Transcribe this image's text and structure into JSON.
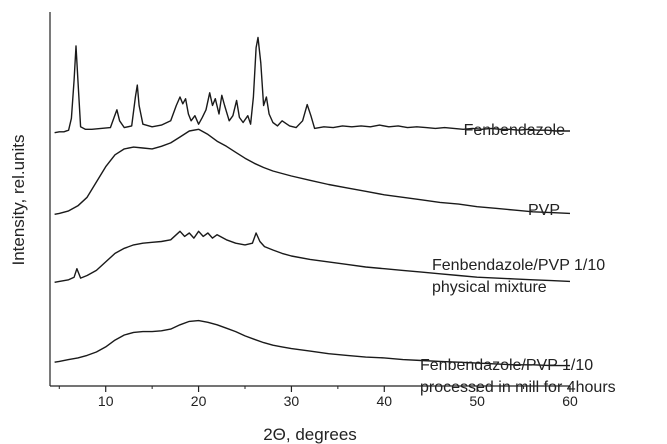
{
  "chart_data": {
    "type": "line",
    "xlabel": "2Θ, degrees",
    "ylabel": "Intensity, rel.units",
    "xlim": [
      4,
      60
    ],
    "ylim": [
      0,
      440
    ],
    "y_ticks_shown": false,
    "x_ticks": [
      10,
      20,
      30,
      40,
      50,
      60
    ],
    "grid": false,
    "line_color": "#1a1a1a",
    "series": [
      {
        "name": "Fenbendazole",
        "labels": [
          "Fenbendazole"
        ],
        "x": [
          4.5,
          5,
          5.5,
          6,
          6.3,
          6.6,
          6.8,
          7.0,
          7.3,
          7.8,
          8.5,
          9.5,
          10.5,
          10.9,
          11.2,
          11.5,
          12,
          12.8,
          13.2,
          13.4,
          13.6,
          14,
          15,
          16,
          17,
          17.6,
          18,
          18.3,
          18.6,
          18.9,
          19.2,
          19.6,
          20,
          20.4,
          20.8,
          21.2,
          21.5,
          21.8,
          22.2,
          22.5,
          22.8,
          23.3,
          23.7,
          24.1,
          24.4,
          24.8,
          25.3,
          25.6,
          25.9,
          26.2,
          26.4,
          26.7,
          27.0,
          27.3,
          27.6,
          28,
          28.5,
          29,
          29.4,
          29.8,
          30.5,
          31.2,
          31.7,
          32.1,
          32.5,
          33.5,
          34.5,
          35.5,
          36.5,
          37.5,
          38.5,
          39.5,
          40.5,
          41.5,
          42.5,
          43.5,
          44.5,
          45.5,
          46.5,
          47.5,
          48.5,
          49.5,
          50.5,
          51.5,
          52.5,
          53.5,
          54.5,
          55.5,
          56.5,
          57.5,
          58.5,
          59.5,
          60
        ],
        "y": [
          298,
          299,
          299,
          301,
          315,
          360,
          400,
          360,
          305,
          302,
          302,
          303,
          304,
          316,
          325,
          312,
          304,
          306,
          340,
          354,
          330,
          308,
          305,
          307,
          312,
          330,
          340,
          332,
          338,
          320,
          312,
          318,
          308,
          316,
          325,
          345,
          330,
          338,
          320,
          342,
          330,
          312,
          318,
          336,
          316,
          310,
          318,
          308,
          340,
          398,
          410,
          380,
          330,
          340,
          320,
          310,
          306,
          312,
          309,
          306,
          304,
          312,
          331,
          318,
          303,
          305,
          304,
          306,
          305,
          306,
          305,
          307,
          305,
          306,
          304,
          305,
          304,
          303,
          304,
          303,
          302,
          303,
          302,
          303,
          302,
          302,
          301,
          302,
          301,
          301,
          300,
          300,
          300
        ]
      },
      {
        "name": "PVP",
        "labels": [
          "PVP"
        ],
        "x": [
          4.5,
          5,
          6,
          7,
          8,
          9,
          10,
          11,
          12,
          13,
          14,
          15,
          16,
          17,
          18,
          19,
          20,
          21,
          22,
          23,
          24,
          25,
          26,
          27,
          28,
          29,
          30,
          32,
          34,
          36,
          38,
          40,
          42,
          44,
          46,
          48,
          50,
          52,
          54,
          56,
          58,
          60
        ],
        "y": [
          202,
          203,
          206,
          212,
          222,
          240,
          258,
          272,
          279,
          281,
          280,
          279,
          282,
          286,
          293,
          300,
          302,
          296,
          288,
          282,
          275,
          268,
          262,
          257,
          253,
          250,
          247,
          242,
          237,
          233,
          229,
          225,
          222,
          219,
          216,
          214,
          211,
          209,
          207,
          205,
          204,
          203
        ]
      },
      {
        "name": "Fenbendazole/PVP 1/10 physical mixture",
        "labels": [
          "Fenbendazole/PVP 1/10",
          "physical mixture"
        ],
        "x": [
          4.5,
          5,
          6,
          6.6,
          6.9,
          7.3,
          8,
          9,
          10,
          11,
          12,
          13,
          14,
          15,
          16,
          17,
          18,
          18.5,
          19,
          19.5,
          20,
          20.5,
          21,
          21.5,
          22,
          23,
          24,
          25,
          25.8,
          26.2,
          26.6,
          27.1,
          28,
          29,
          30,
          32,
          34,
          36,
          38,
          40,
          42,
          44,
          46,
          48,
          50,
          52,
          54,
          56,
          58,
          60
        ],
        "y": [
          122,
          123,
          125,
          128,
          138,
          127,
          130,
          136,
          146,
          156,
          162,
          166,
          168,
          169,
          170,
          172,
          182,
          176,
          180,
          174,
          182,
          176,
          180,
          174,
          178,
          172,
          168,
          166,
          168,
          180,
          170,
          164,
          160,
          156,
          153,
          149,
          146,
          143,
          140,
          138,
          136,
          134,
          132,
          130,
          128,
          127,
          126,
          125,
          124,
          123
        ]
      },
      {
        "name": "Fenbendazole/PVP 1/10 processed in mill for 4hours",
        "labels": [
          "Fenbendazole/PVP 1/10",
          "processed in mill for 4hours"
        ],
        "x": [
          4.5,
          5,
          6,
          7,
          8,
          9,
          10,
          11,
          12,
          13,
          14,
          15,
          16,
          17,
          18,
          19,
          20,
          21,
          22,
          23,
          24,
          25,
          26,
          27,
          28,
          29,
          30,
          32,
          34,
          36,
          38,
          40,
          42,
          44,
          46,
          48,
          50,
          52,
          54,
          56,
          58,
          60
        ],
        "y": [
          28,
          29,
          31,
          33,
          36,
          40,
          46,
          54,
          60,
          63,
          64,
          64,
          65,
          67,
          72,
          76,
          77,
          75,
          72,
          68,
          64,
          59,
          55,
          51,
          48,
          46,
          44,
          41,
          38,
          36,
          34,
          33,
          31,
          30,
          29,
          28,
          27,
          26,
          25,
          25,
          24,
          24
        ]
      }
    ]
  }
}
